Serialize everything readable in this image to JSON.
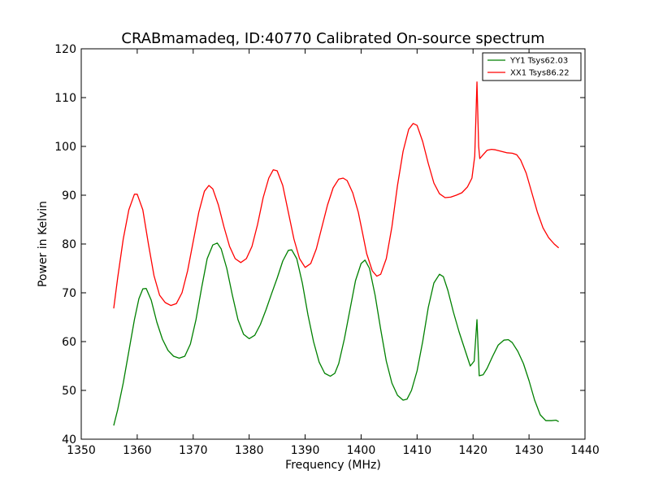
{
  "chart_data": {
    "type": "line",
    "title": "CRABmamadeq, ID:40770 Calibrated On-source spectrum",
    "xlabel": "Frequency (MHz)",
    "ylabel": "Power in Kelvin",
    "xlim": [
      1350,
      1440
    ],
    "ylim": [
      40,
      120
    ],
    "xticks": [
      1350,
      1360,
      1370,
      1380,
      1390,
      1400,
      1410,
      1420,
      1430,
      1440
    ],
    "yticks": [
      40,
      50,
      60,
      70,
      80,
      90,
      100,
      110,
      120
    ],
    "grid": false,
    "legend_position": "top-right",
    "series": [
      {
        "name": "YY1 Tsys62.03",
        "color": "#008000",
        "points": [
          [
            1355.8,
            42.8
          ],
          [
            1356.5,
            46.0
          ],
          [
            1357.5,
            51.5
          ],
          [
            1358.5,
            58.0
          ],
          [
            1359.5,
            64.5
          ],
          [
            1360.3,
            68.8
          ],
          [
            1361.0,
            70.8
          ],
          [
            1361.6,
            70.9
          ],
          [
            1362.5,
            68.5
          ],
          [
            1363.5,
            64.0
          ],
          [
            1364.5,
            60.5
          ],
          [
            1365.5,
            58.2
          ],
          [
            1366.5,
            57.0
          ],
          [
            1367.5,
            56.6
          ],
          [
            1368.5,
            57.0
          ],
          [
            1369.5,
            59.5
          ],
          [
            1370.5,
            64.5
          ],
          [
            1371.5,
            71.0
          ],
          [
            1372.5,
            77.0
          ],
          [
            1373.5,
            79.8
          ],
          [
            1374.3,
            80.2
          ],
          [
            1375.0,
            79.0
          ],
          [
            1376.0,
            75.0
          ],
          [
            1377.0,
            69.5
          ],
          [
            1378.0,
            64.5
          ],
          [
            1379.0,
            61.5
          ],
          [
            1380.0,
            60.6
          ],
          [
            1381.0,
            61.3
          ],
          [
            1382.0,
            63.5
          ],
          [
            1383.0,
            66.5
          ],
          [
            1384.0,
            69.8
          ],
          [
            1385.0,
            73.0
          ],
          [
            1386.0,
            76.5
          ],
          [
            1387.0,
            78.7
          ],
          [
            1387.6,
            78.8
          ],
          [
            1388.5,
            77.0
          ],
          [
            1389.5,
            72.0
          ],
          [
            1390.5,
            65.5
          ],
          [
            1391.5,
            60.0
          ],
          [
            1392.5,
            55.8
          ],
          [
            1393.5,
            53.5
          ],
          [
            1394.5,
            52.9
          ],
          [
            1395.3,
            53.5
          ],
          [
            1396.0,
            55.5
          ],
          [
            1397.0,
            60.5
          ],
          [
            1398.0,
            66.5
          ],
          [
            1399.0,
            72.5
          ],
          [
            1400.0,
            76.0
          ],
          [
            1400.7,
            76.7
          ],
          [
            1401.5,
            75.0
          ],
          [
            1402.5,
            69.5
          ],
          [
            1403.5,
            62.5
          ],
          [
            1404.5,
            56.0
          ],
          [
            1405.5,
            51.5
          ],
          [
            1406.5,
            49.0
          ],
          [
            1407.5,
            48.0
          ],
          [
            1408.2,
            48.2
          ],
          [
            1409.0,
            50.0
          ],
          [
            1410.0,
            54.0
          ],
          [
            1411.0,
            60.0
          ],
          [
            1412.0,
            67.0
          ],
          [
            1413.0,
            72.0
          ],
          [
            1414.0,
            73.8
          ],
          [
            1414.7,
            73.3
          ],
          [
            1415.5,
            70.5
          ],
          [
            1416.5,
            66.0
          ],
          [
            1417.5,
            62.0
          ],
          [
            1418.5,
            58.5
          ],
          [
            1419.5,
            55.0
          ],
          [
            1420.2,
            56.0
          ],
          [
            1420.7,
            64.5
          ],
          [
            1421.1,
            53.0
          ],
          [
            1421.8,
            53.2
          ],
          [
            1422.5,
            54.5
          ],
          [
            1423.5,
            57.0
          ],
          [
            1424.5,
            59.3
          ],
          [
            1425.5,
            60.3
          ],
          [
            1426.3,
            60.4
          ],
          [
            1427.0,
            59.8
          ],
          [
            1428.0,
            58.0
          ],
          [
            1429.0,
            55.5
          ],
          [
            1430.0,
            52.0
          ],
          [
            1431.0,
            48.0
          ],
          [
            1432.0,
            45.0
          ],
          [
            1433.0,
            43.8
          ],
          [
            1434.0,
            43.8
          ],
          [
            1434.8,
            43.9
          ],
          [
            1435.3,
            43.6
          ]
        ]
      },
      {
        "name": "XX1 Tsys86.22",
        "color": "#ff0000",
        "points": [
          [
            1355.8,
            66.8
          ],
          [
            1356.5,
            73.0
          ],
          [
            1357.5,
            81.0
          ],
          [
            1358.5,
            87.0
          ],
          [
            1359.5,
            90.2
          ],
          [
            1360.0,
            90.2
          ],
          [
            1361.0,
            87.0
          ],
          [
            1362.0,
            80.0
          ],
          [
            1363.0,
            73.5
          ],
          [
            1364.0,
            69.5
          ],
          [
            1365.0,
            68.0
          ],
          [
            1366.0,
            67.4
          ],
          [
            1367.0,
            67.8
          ],
          [
            1368.0,
            70.0
          ],
          [
            1369.0,
            74.5
          ],
          [
            1370.0,
            80.5
          ],
          [
            1371.0,
            86.5
          ],
          [
            1372.0,
            90.8
          ],
          [
            1372.8,
            92.0
          ],
          [
            1373.5,
            91.3
          ],
          [
            1374.5,
            88.0
          ],
          [
            1375.5,
            83.5
          ],
          [
            1376.5,
            79.5
          ],
          [
            1377.5,
            77.0
          ],
          [
            1378.5,
            76.2
          ],
          [
            1379.5,
            77.0
          ],
          [
            1380.5,
            79.5
          ],
          [
            1381.5,
            84.0
          ],
          [
            1382.5,
            89.5
          ],
          [
            1383.5,
            93.5
          ],
          [
            1384.3,
            95.2
          ],
          [
            1385.0,
            95.0
          ],
          [
            1386.0,
            92.0
          ],
          [
            1387.0,
            86.5
          ],
          [
            1388.0,
            81.0
          ],
          [
            1389.0,
            77.0
          ],
          [
            1390.0,
            75.2
          ],
          [
            1391.0,
            76.0
          ],
          [
            1392.0,
            79.0
          ],
          [
            1393.0,
            83.5
          ],
          [
            1394.0,
            88.0
          ],
          [
            1395.0,
            91.5
          ],
          [
            1396.0,
            93.3
          ],
          [
            1396.8,
            93.5
          ],
          [
            1397.5,
            93.0
          ],
          [
            1398.5,
            90.5
          ],
          [
            1399.5,
            86.5
          ],
          [
            1400.3,
            82.0
          ],
          [
            1401.0,
            78.0
          ],
          [
            1402.0,
            74.5
          ],
          [
            1402.8,
            73.4
          ],
          [
            1403.5,
            73.8
          ],
          [
            1404.5,
            77.0
          ],
          [
            1405.5,
            83.5
          ],
          [
            1406.5,
            92.0
          ],
          [
            1407.5,
            99.0
          ],
          [
            1408.5,
            103.5
          ],
          [
            1409.3,
            104.7
          ],
          [
            1410.0,
            104.3
          ],
          [
            1411.0,
            101.0
          ],
          [
            1412.0,
            96.5
          ],
          [
            1413.0,
            92.5
          ],
          [
            1414.0,
            90.3
          ],
          [
            1415.0,
            89.5
          ],
          [
            1416.0,
            89.6
          ],
          [
            1417.0,
            90.0
          ],
          [
            1418.0,
            90.5
          ],
          [
            1419.0,
            91.7
          ],
          [
            1419.8,
            93.5
          ],
          [
            1420.3,
            98.0
          ],
          [
            1420.7,
            113.2
          ],
          [
            1421.0,
            100.0
          ],
          [
            1421.2,
            97.5
          ],
          [
            1421.8,
            98.3
          ],
          [
            1422.5,
            99.2
          ],
          [
            1423.3,
            99.4
          ],
          [
            1424.0,
            99.3
          ],
          [
            1425.0,
            99.0
          ],
          [
            1426.0,
            98.7
          ],
          [
            1427.0,
            98.6
          ],
          [
            1427.8,
            98.3
          ],
          [
            1428.5,
            97.2
          ],
          [
            1429.5,
            94.5
          ],
          [
            1430.5,
            90.5
          ],
          [
            1431.5,
            86.5
          ],
          [
            1432.5,
            83.3
          ],
          [
            1433.5,
            81.3
          ],
          [
            1434.5,
            80.0
          ],
          [
            1435.3,
            79.2
          ]
        ]
      }
    ]
  }
}
